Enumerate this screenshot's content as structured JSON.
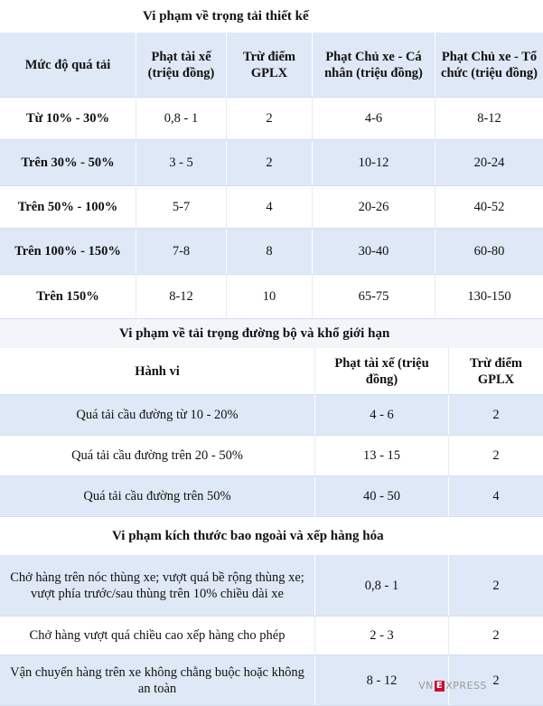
{
  "section1": {
    "title": "Vi phạm về trọng tải thiết kế",
    "headers": [
      "Mức độ quá tải",
      "Phạt tài xế (triệu đồng)",
      "Trừ điểm GPLX",
      "Phạt Chủ xe - Cá nhân (triệu đồng)",
      "Phạt Chủ xe - Tổ chức (triệu đồng)"
    ],
    "rows": [
      [
        "Từ 10% - 30%",
        "0,8 - 1",
        "2",
        "4-6",
        "8-12"
      ],
      [
        "Trên 30% - 50%",
        "3 - 5",
        "2",
        "10-12",
        "20-24"
      ],
      [
        "Trên 50% - 100%",
        "5-7",
        "4",
        "20-26",
        "40-52"
      ],
      [
        "Trên 100% - 150%",
        "7-8",
        "8",
        "30-40",
        "60-80"
      ],
      [
        "Trên 150%",
        "8-12",
        "10",
        "65-75",
        "130-150"
      ]
    ]
  },
  "section2": {
    "title": "Vi phạm về tải trọng đường bộ và khổ giới hạn",
    "headers": [
      "Hành vi",
      "Phạt tài xế (triệu đồng)",
      "Trừ điểm GPLX"
    ],
    "rows": [
      [
        "Quá tải cầu đường từ 10 - 20%",
        "4 - 6",
        "2"
      ],
      [
        "Quá tải cầu đường  trên 20 - 50%",
        "13 - 15",
        "2"
      ],
      [
        "Quá tải cầu đường trên 50%",
        "40 - 50",
        "4"
      ]
    ]
  },
  "section3": {
    "title": "Vi phạm kích thước bao ngoài và xếp hàng hóa",
    "rows": [
      [
        "Chở hàng trên nóc thùng xe; vượt quá bề rộng thùng xe; vượt phía trước/sau thùng trên 10% chiều dài xe",
        "0,8 - 1",
        "2"
      ],
      [
        "Chở hàng vượt quá chiều cao xếp hàng cho phép",
        "2 - 3",
        "2"
      ],
      [
        "Vận chuyển hàng trên xe không chằng buộc hoặc không an toàn",
        "8 - 12",
        "2"
      ]
    ]
  },
  "watermark": {
    "left": "VN",
    "mid": "E",
    "right": "XPRESS"
  },
  "colors": {
    "row_tint": "#dfe8f6",
    "brand_red": "#c8102e"
  }
}
